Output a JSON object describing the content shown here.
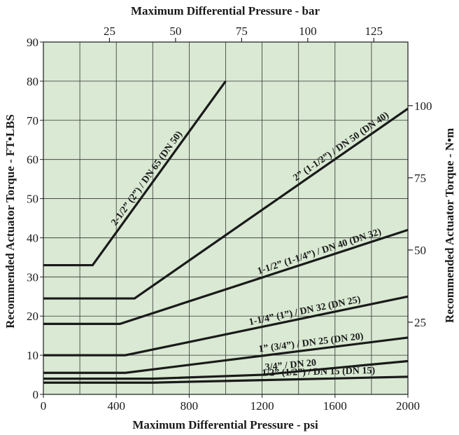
{
  "chart_data": {
    "type": "line",
    "title_top": "Maximum Differential Pressure - bar",
    "xlabel": "Maximum Differential Pressure - psi",
    "ylabel_left": "Recommended Actuator Torque - FT•LBS",
    "ylabel_right": "Recommended Actuator Torque - N•m",
    "xlim": [
      0,
      2000
    ],
    "ylim": [
      0,
      90
    ],
    "grid": true,
    "background": "#d9e9d3",
    "line_color": "#1a1a1a",
    "x_ticks": [
      "0",
      "400",
      "800",
      "1200",
      "1600",
      "2000"
    ],
    "x_tick_values": [
      0,
      400,
      800,
      1200,
      1600,
      2000
    ],
    "y_ticks": [
      "0",
      "10",
      "20",
      "30",
      "40",
      "50",
      "60",
      "70",
      "80",
      "90"
    ],
    "y_tick_values": [
      0,
      10,
      20,
      30,
      40,
      50,
      60,
      70,
      80,
      90
    ],
    "top_ticks": [
      "25",
      "50",
      "75",
      "100",
      "125"
    ],
    "top_tick_bar": [
      25,
      50,
      75,
      100,
      125
    ],
    "psi_per_bar": 14.5038,
    "right_ticks": [
      "25",
      "50",
      "75",
      "100"
    ],
    "right_tick_nm": [
      25,
      50,
      75,
      100
    ],
    "ftlb_per_nm": 0.737562,
    "series": [
      {
        "name": "2-1/2” (2”) / DN 65 (DN 50)",
        "x": [
          0,
          270,
          1000
        ],
        "y": [
          33,
          33,
          80
        ]
      },
      {
        "name": "2” (1-1/2”) / DN 50 (DN 40)",
        "x": [
          0,
          500,
          2000
        ],
        "y": [
          24.5,
          24.5,
          73
        ]
      },
      {
        "name": "1-1/2” (1-1/4”) / DN 40 (DN 32)",
        "x": [
          0,
          420,
          2000
        ],
        "y": [
          18,
          18,
          42
        ]
      },
      {
        "name": "1-1/4” (1”) / DN 32 (DN 25)",
        "x": [
          0,
          450,
          2000
        ],
        "y": [
          10,
          10,
          25
        ]
      },
      {
        "name": "1” (3/4”) / DN 25 (DN 20)",
        "x": [
          0,
          450,
          2000
        ],
        "y": [
          5.5,
          5.5,
          14.5
        ]
      },
      {
        "name": "3/4” / DN 20",
        "x": [
          0,
          600,
          1200,
          2000
        ],
        "y": [
          4,
          4,
          5,
          8.5
        ]
      },
      {
        "name": "1/2” (1/2”) / DN 15 (DN 15)",
        "x": [
          0,
          600,
          2000
        ],
        "y": [
          3,
          3,
          4.5
        ]
      }
    ]
  }
}
